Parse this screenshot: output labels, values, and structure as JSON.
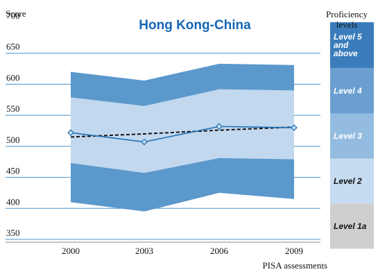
{
  "chart_data": {
    "type": "line",
    "title": "Hong Kong-China",
    "ylabel": "Score",
    "xlabel": "PISA assessments",
    "legend_title": "Proficiency levels",
    "ylim": [
      350,
      700
    ],
    "yticks": [
      350,
      400,
      450,
      500,
      550,
      600,
      650,
      700
    ],
    "categories": [
      "2000",
      "2003",
      "2006",
      "2009"
    ],
    "series": [
      {
        "style": "solid-with-diamond-markers",
        "values": [
          522,
          507,
          532,
          530
        ]
      },
      {
        "style": "dashed-trend",
        "values": [
          515,
          520,
          526,
          531
        ]
      }
    ],
    "percentile_bands": {
      "p5": [
        410,
        395,
        425,
        415
      ],
      "p25": [
        473,
        457,
        481,
        479
      ],
      "p75": [
        579,
        565,
        592,
        590
      ],
      "p95": [
        620,
        606,
        633,
        631
      ]
    },
    "proficiency_levels": [
      {
        "label": "Level 5 and above",
        "lines": [
          "Level 5",
          "and",
          "above"
        ],
        "from": 626,
        "to": 700,
        "color": "#3b7dbb",
        "text_color": "#ffffff"
      },
      {
        "label": "Level 4",
        "lines": [
          "Level 4"
        ],
        "from": 553,
        "to": 626,
        "color": "#6a9fd0",
        "text_color": "#ffffff"
      },
      {
        "label": "Level 3",
        "lines": [
          "Level 3"
        ],
        "from": 480,
        "to": 553,
        "color": "#93bce0",
        "text_color": "#ffffff"
      },
      {
        "label": "Level 2",
        "lines": [
          "Level 2"
        ],
        "from": 408,
        "to": 480,
        "color": "#c6dcf0",
        "text_color": "#111111"
      },
      {
        "label": "Level 1a",
        "lines": [
          "Level 1a"
        ],
        "from": 335,
        "to": 408,
        "color": "#cfcfcf",
        "text_color": "#111111"
      }
    ],
    "grid": true,
    "legend_position": "right",
    "colors": {
      "band_outer": "#5b98cc",
      "band_inner": "#c2d8ee",
      "line": "#1e6fb5",
      "trend": "#111111",
      "gridline": "#4a90c8",
      "title": "#1565b5"
    }
  }
}
